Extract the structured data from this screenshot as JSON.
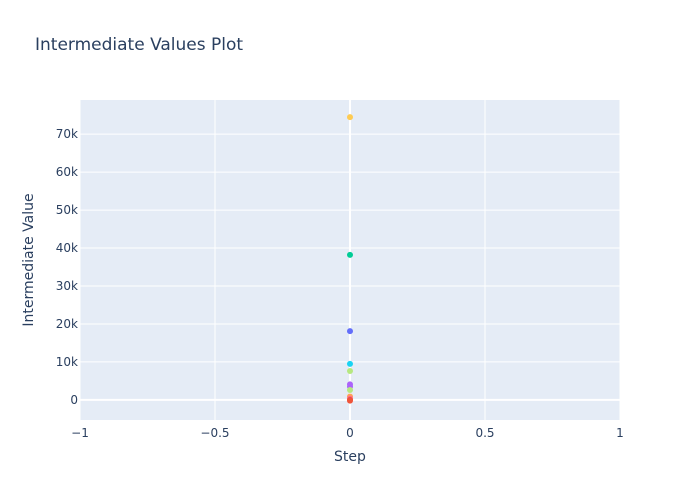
{
  "chart_data": {
    "type": "scatter",
    "title": "Intermediate Values Plot",
    "xlabel": "Step",
    "ylabel": "Intermediate Value",
    "xlim": [
      -1,
      1
    ],
    "ylim": [
      -5300,
      79000
    ],
    "x_ticks": [
      -1,
      -0.5,
      0,
      0.5,
      1
    ],
    "x_tick_labels": [
      "−1",
      "−0.5",
      "0",
      "0.5",
      "1"
    ],
    "y_ticks": [
      0,
      10000,
      20000,
      30000,
      40000,
      50000,
      60000,
      70000
    ],
    "y_tick_labels": [
      "0",
      "10k",
      "20k",
      "30k",
      "40k",
      "50k",
      "60k",
      "70k"
    ],
    "grid": true,
    "legend": "none",
    "plot_background": "#e5ecf6",
    "points": [
      {
        "x": 0,
        "y": 74500,
        "color": "#fecb52"
      },
      {
        "x": 0,
        "y": 38200,
        "color": "#00cc96"
      },
      {
        "x": 0,
        "y": 18100,
        "color": "#636efa"
      },
      {
        "x": 0,
        "y": 9500,
        "color": "#19d3f3"
      },
      {
        "x": 0,
        "y": 7600,
        "color": "#b6e880"
      },
      {
        "x": 0,
        "y": 4100,
        "color": "#ab63fa"
      },
      {
        "x": 0,
        "y": 3500,
        "color": "#ab63fa"
      },
      {
        "x": 0,
        "y": 2600,
        "color": "#b6e880"
      },
      {
        "x": 0,
        "y": 900,
        "color": "#ffa15a"
      },
      {
        "x": 0,
        "y": 300,
        "color": "#ff6692"
      },
      {
        "x": 0,
        "y": 0,
        "color": "#ef553b"
      },
      {
        "x": 0,
        "y": -200,
        "color": "#ef553b"
      }
    ]
  }
}
